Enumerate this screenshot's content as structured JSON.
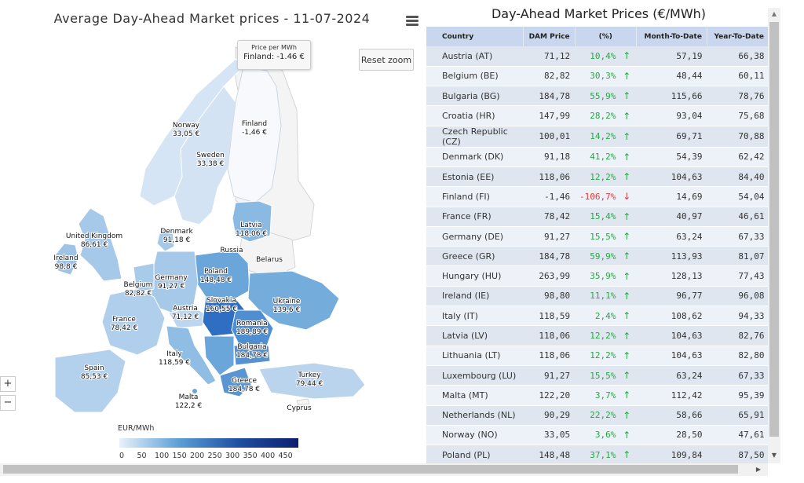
{
  "map": {
    "title": "Average Day-Ahead Market prices - 11-07-2024",
    "reset_zoom_label": "Reset zoom",
    "zoom_in_label": "+",
    "zoom_out_label": "−",
    "menu_icon": "hamburger-menu-icon",
    "tooltip": {
      "line1": "Price per MWh",
      "line2": "Finland: -1.46 €"
    },
    "labels": [
      {
        "name": "Norway",
        "value": "33,05 €"
      },
      {
        "name": "Finland",
        "value": "-1,46 €"
      },
      {
        "name": "Sweden",
        "value": "33,38 €"
      },
      {
        "name": "Latvia",
        "value": "118,06 €"
      },
      {
        "name": "Denmark",
        "value": "91,18 €"
      },
      {
        "name": "United Kingdom",
        "value": "86,61 €"
      },
      {
        "name": "Ireland",
        "value": "98,8 €"
      },
      {
        "name": "Russia",
        "value": ""
      },
      {
        "name": "Belarus",
        "value": ""
      },
      {
        "name": "Poland",
        "value": "148,48 €"
      },
      {
        "name": "Germany",
        "value": "91,27 €"
      },
      {
        "name": "Belgium",
        "value": "82,82 €"
      },
      {
        "name": "Ukraine",
        "value": "139,6 €"
      },
      {
        "name": "Slovakia",
        "value": "160,55 €"
      },
      {
        "name": "Austria",
        "value": "71,12 €"
      },
      {
        "name": "France",
        "value": "78,42 €"
      },
      {
        "name": "Romania",
        "value": "189,89 €"
      },
      {
        "name": "Bulgaria",
        "value": "184,78 €"
      },
      {
        "name": "Italy",
        "value": "118,59 €"
      },
      {
        "name": "Spain",
        "value": "85,53 €"
      },
      {
        "name": "Greece",
        "value": "184,78 €"
      },
      {
        "name": "Turkey",
        "value": "79,44 €"
      },
      {
        "name": "Malta",
        "value": "122,2 €"
      },
      {
        "name": "Cyprus",
        "value": ""
      }
    ],
    "legend": {
      "title": "EUR/MWh",
      "ticks": [
        "0",
        "50",
        "100",
        "150",
        "200",
        "250",
        "300",
        "350",
        "400",
        "450"
      ],
      "color_low": "#e8f1fa",
      "color_high": "#0c1f6e"
    }
  },
  "table": {
    "title": "Day-Ahead Market Prices (€/MWh)",
    "headers": {
      "country": "Country",
      "dam": "DAM Price",
      "pct": "(%)",
      "mtd": "Month-To-Date",
      "ytd": "Year-To-Date"
    },
    "rows": [
      {
        "country": "Austria (AT)",
        "dam": "71,12",
        "pct": "10,4%",
        "dir": "up",
        "mtd": "57,19",
        "ytd": "66,38"
      },
      {
        "country": "Belgium (BE)",
        "dam": "82,82",
        "pct": "30,3%",
        "dir": "up",
        "mtd": "48,44",
        "ytd": "60,11"
      },
      {
        "country": "Bulgaria (BG)",
        "dam": "184,78",
        "pct": "55,9%",
        "dir": "up",
        "mtd": "115,66",
        "ytd": "78,76"
      },
      {
        "country": "Croatia (HR)",
        "dam": "147,99",
        "pct": "28,2%",
        "dir": "up",
        "mtd": "93,04",
        "ytd": "75,68"
      },
      {
        "country": "Czech Republic (CZ)",
        "dam": "100,01",
        "pct": "14,2%",
        "dir": "up",
        "mtd": "69,71",
        "ytd": "70,88"
      },
      {
        "country": "Denmark (DK)",
        "dam": "91,18",
        "pct": "41,2%",
        "dir": "up",
        "mtd": "54,39",
        "ytd": "62,42"
      },
      {
        "country": "Estonia (EE)",
        "dam": "118,06",
        "pct": "12,2%",
        "dir": "up",
        "mtd": "104,63",
        "ytd": "84,40"
      },
      {
        "country": "Finland (FI)",
        "dam": "-1,46",
        "pct": "-106,7%",
        "dir": "down",
        "mtd": "14,69",
        "ytd": "54,04"
      },
      {
        "country": "France (FR)",
        "dam": "78,42",
        "pct": "15,4%",
        "dir": "up",
        "mtd": "40,97",
        "ytd": "46,61"
      },
      {
        "country": "Germany (DE)",
        "dam": "91,27",
        "pct": "15,5%",
        "dir": "up",
        "mtd": "63,24",
        "ytd": "67,33"
      },
      {
        "country": "Greece (GR)",
        "dam": "184,78",
        "pct": "59,9%",
        "dir": "up",
        "mtd": "113,93",
        "ytd": "81,07"
      },
      {
        "country": "Hungary (HU)",
        "dam": "263,99",
        "pct": "35,9%",
        "dir": "up",
        "mtd": "128,13",
        "ytd": "77,43"
      },
      {
        "country": "Ireland (IE)",
        "dam": "98,80",
        "pct": "11,1%",
        "dir": "up",
        "mtd": "96,77",
        "ytd": "96,08"
      },
      {
        "country": "Italy (IT)",
        "dam": "118,59",
        "pct": "2,4%",
        "dir": "up",
        "mtd": "108,62",
        "ytd": "94,33"
      },
      {
        "country": "Latvia (LV)",
        "dam": "118,06",
        "pct": "12,2%",
        "dir": "up",
        "mtd": "104,63",
        "ytd": "82,76"
      },
      {
        "country": "Lithuania (LT)",
        "dam": "118,06",
        "pct": "12,2%",
        "dir": "up",
        "mtd": "104,63",
        "ytd": "82,80"
      },
      {
        "country": "Luxembourg (LU)",
        "dam": "91,27",
        "pct": "15,5%",
        "dir": "up",
        "mtd": "63,24",
        "ytd": "67,33"
      },
      {
        "country": "Malta (MT)",
        "dam": "122,20",
        "pct": "3,7%",
        "dir": "up",
        "mtd": "112,42",
        "ytd": "95,39"
      },
      {
        "country": "Netherlands (NL)",
        "dam": "90,29",
        "pct": "22,2%",
        "dir": "up",
        "mtd": "58,66",
        "ytd": "65,91"
      },
      {
        "country": "Norway (NO)",
        "dam": "33,05",
        "pct": "3,6%",
        "dir": "up",
        "mtd": "28,50",
        "ytd": "47,61"
      },
      {
        "country": "Poland (PL)",
        "dam": "148,48",
        "pct": "37,1%",
        "dir": "up",
        "mtd": "109,84",
        "ytd": "87,50"
      }
    ],
    "arrow_up_icon": "arrow-up-icon",
    "arrow_down_icon": "arrow-down-icon",
    "positive_color": "#28a745",
    "negative_color": "#e53935"
  }
}
